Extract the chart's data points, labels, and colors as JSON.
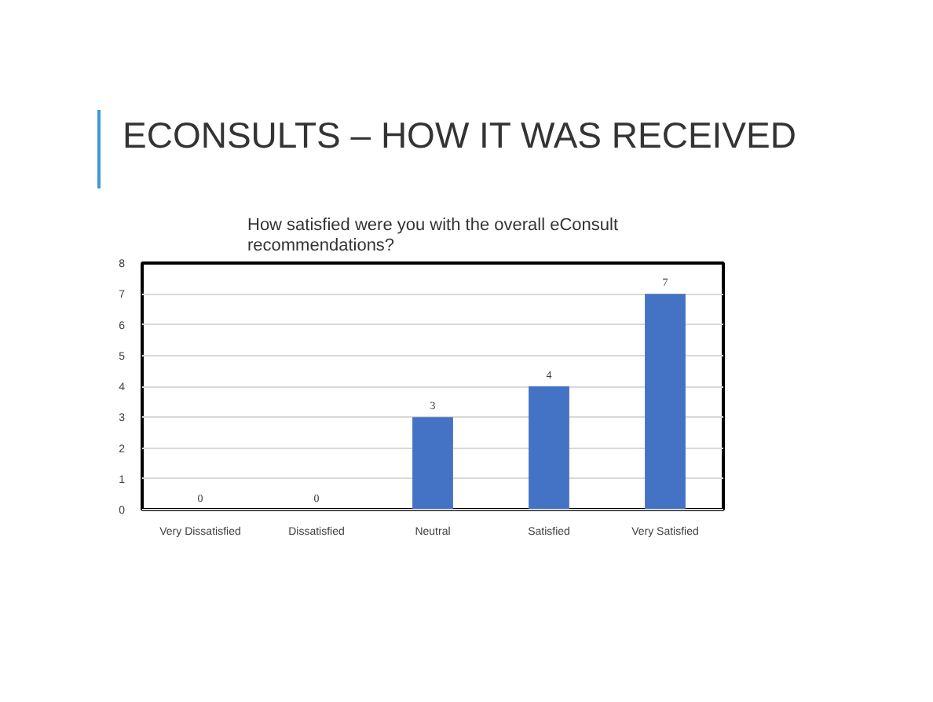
{
  "chart_data": {
    "type": "bar",
    "title": "ECONSULTS – HOW IT WAS RECEIVED",
    "subtitle": "How satisfied were you with the overall eConsult recommendations?",
    "categories": [
      "Very Dissatisfied",
      "Dissatisfied",
      "Neutral",
      "Satisfied",
      "Very Satisfied"
    ],
    "values": [
      0,
      0,
      3,
      4,
      7
    ],
    "color": "#4472c4",
    "ylim": [
      0,
      8
    ],
    "yticks": [
      0,
      1,
      2,
      3,
      4,
      5,
      6,
      7,
      8
    ],
    "grid": "y",
    "data_labels": true
  }
}
